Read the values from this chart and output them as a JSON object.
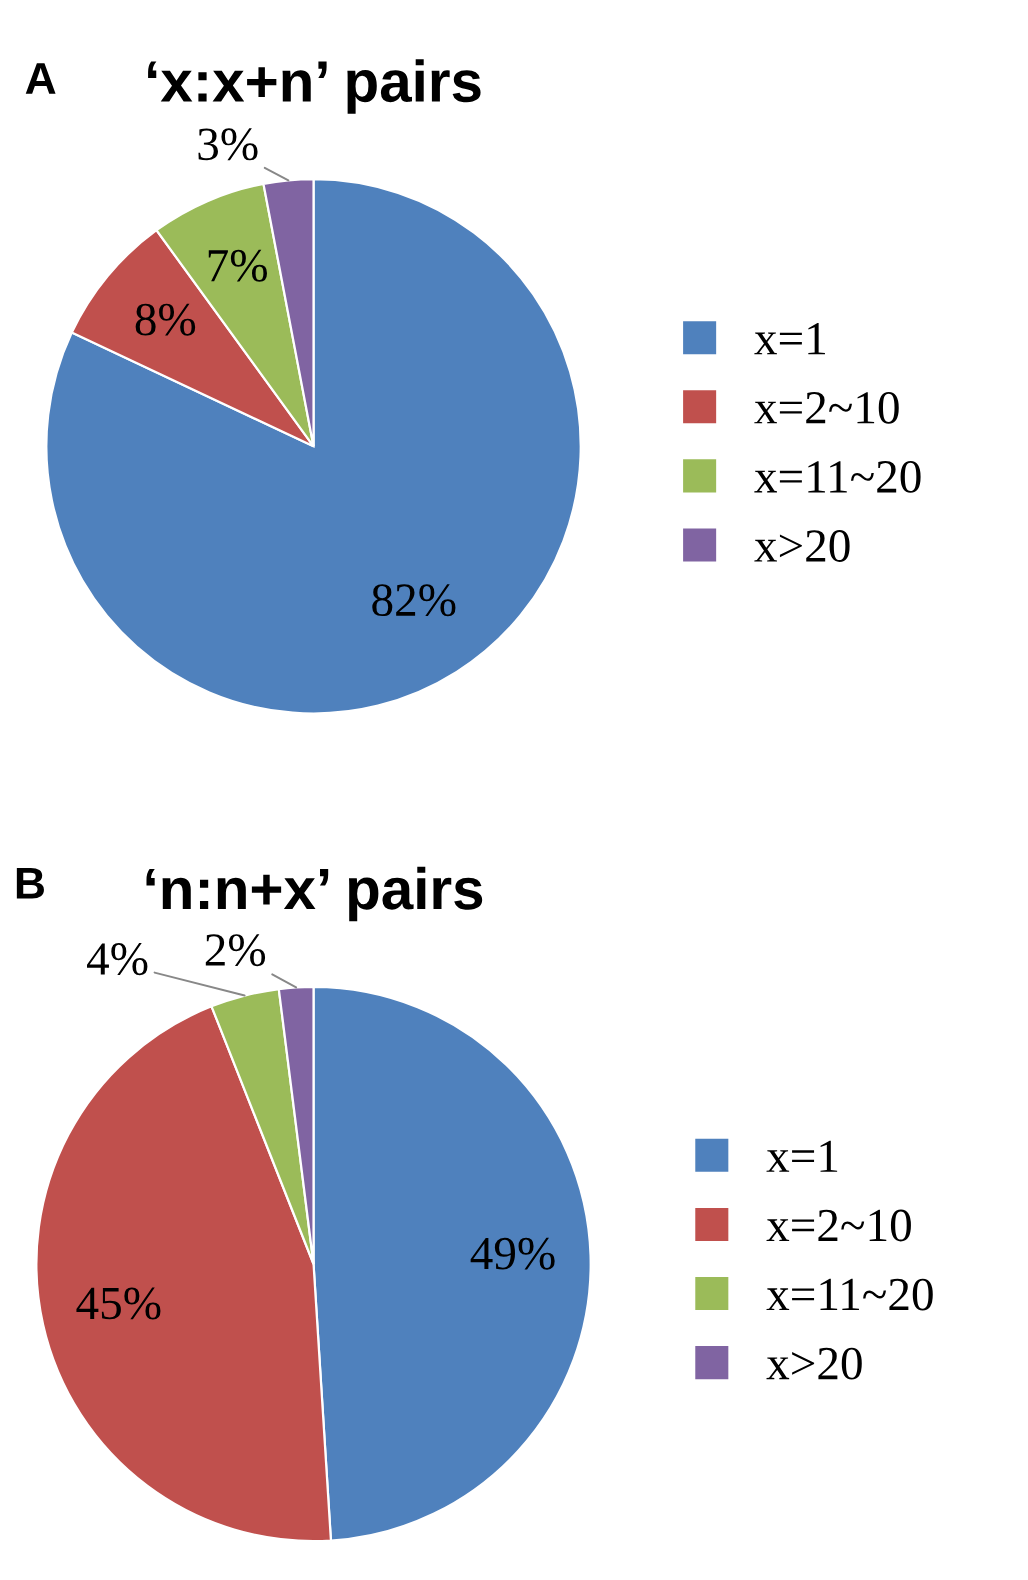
{
  "chart_data": [
    {
      "type": "pie",
      "title": "‘x:x+n’ pairs",
      "annotations": [
        "A"
      ],
      "categories": [
        "x=1",
        "x=2~10",
        "x=11~20",
        "x>20"
      ],
      "values": [
        82,
        8,
        7,
        3
      ],
      "value_labels": [
        "82%",
        "8%",
        "7%",
        "3%"
      ],
      "colors": [
        "#4f81bd",
        "#c0504d",
        "#9bbb59",
        "#8064a2"
      ],
      "legend": "right"
    },
    {
      "type": "pie",
      "title": "‘n:n+x’ pairs",
      "annotations": [
        "B"
      ],
      "categories": [
        "x=1",
        "x=2~10",
        "x=11~20",
        "x>20"
      ],
      "values": [
        49,
        45,
        4,
        2
      ],
      "value_labels": [
        "49%",
        "45%",
        "4%",
        "2%"
      ],
      "colors": [
        "#4f81bd",
        "#c0504d",
        "#9bbb59",
        "#8064a2"
      ],
      "legend": "right"
    }
  ]
}
